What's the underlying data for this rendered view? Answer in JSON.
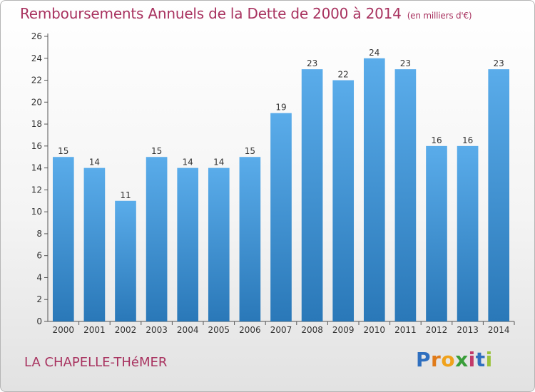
{
  "title": "Remboursements Annuels de la Dette de 2000 à 2014",
  "subtitle": "(en milliers d'€)",
  "commune": "LA CHAPELLE-THéMER",
  "logo": {
    "letters": [
      "P",
      "r",
      "o",
      "x",
      "i",
      "t",
      "i"
    ],
    "colors": [
      "#2f6fbf",
      "#e07b1a",
      "#f0a21c",
      "#3a9e3a",
      "#c23a6a",
      "#2f6fbf",
      "#9ac23a"
    ]
  },
  "colors": {
    "bar_light": "#5aacea",
    "bar_dark": "#2a78b8",
    "text_accent": "#a8325f"
  },
  "chart_data": {
    "type": "bar",
    "categories": [
      "2000",
      "2001",
      "2002",
      "2003",
      "2004",
      "2005",
      "2006",
      "2007",
      "2008",
      "2009",
      "2010",
      "2011",
      "2012",
      "2013",
      "2014"
    ],
    "values": [
      15,
      14,
      11,
      15,
      14,
      14,
      15,
      19,
      23,
      22,
      24,
      23,
      16,
      16,
      23
    ],
    "ylim": [
      0,
      26
    ],
    "yticks": [
      0,
      2,
      4,
      6,
      8,
      10,
      12,
      14,
      16,
      18,
      20,
      22,
      24,
      26
    ],
    "grid": false
  }
}
